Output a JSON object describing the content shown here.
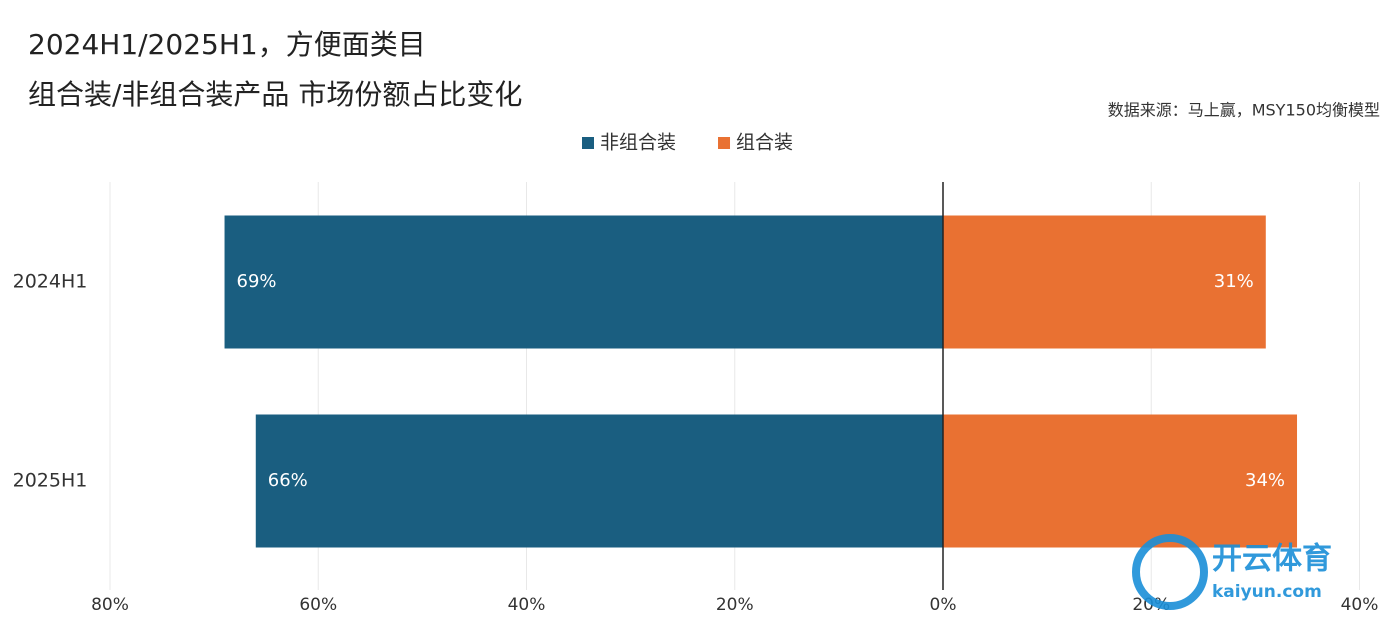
{
  "chart_data": {
    "type": "diverging-bar",
    "title": [
      "2024H1/2025H1，方便面类目",
      "组合装/非组合装产品 市场份额占比变化"
    ],
    "source": "数据来源：马上赢，MSY150均衡模型",
    "categories": [
      "2024H1",
      "2025H1"
    ],
    "series": [
      {
        "name": "非组合装",
        "color": "#1a5e80",
        "values": [
          -69,
          -66
        ],
        "value_labels": [
          "69%",
          "66%"
        ]
      },
      {
        "name": "组合装",
        "color": "#e97132",
        "values": [
          31,
          34
        ],
        "value_labels": [
          "31%",
          "34%"
        ]
      }
    ],
    "xlim": [
      -80,
      40
    ],
    "xticks": [
      {
        "value": -80,
        "label": "80%"
      },
      {
        "value": -60,
        "label": "60%"
      },
      {
        "value": -40,
        "label": "40%"
      },
      {
        "value": -20,
        "label": "20%"
      },
      {
        "value": 0,
        "label": "0%"
      },
      {
        "value": 20,
        "label": "20%"
      },
      {
        "value": 40,
        "label": "40%"
      }
    ],
    "grid": true,
    "legend": "top"
  },
  "watermark": {
    "name": "开云体育",
    "site": "kaiyun.com"
  }
}
